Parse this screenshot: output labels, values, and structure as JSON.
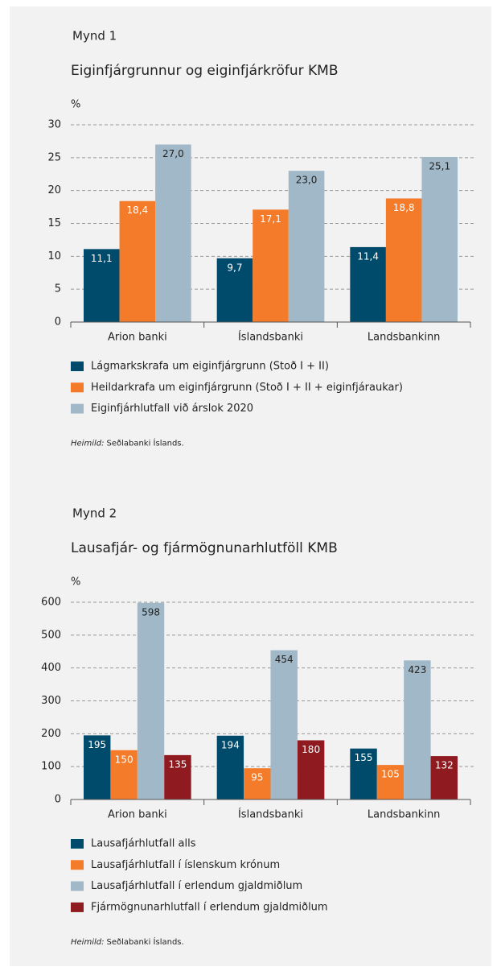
{
  "chart_data": [
    {
      "type": "bar",
      "figure": "Mynd 1",
      "title": "Eiginfjárgrunnur og eiginfjárkröfur KMB",
      "y_unit": "%",
      "categories": [
        "Arion banki",
        "Íslandsbanki",
        "Landsbankinn"
      ],
      "series": [
        {
          "name": "Lágmarkskrafa um eiginfjárgrunn (Stoð I +  II)",
          "color": "#004b6b",
          "values": [
            11.1,
            9.7,
            11.4
          ],
          "value_labels": [
            "11,1",
            "9,7",
            "11,4"
          ]
        },
        {
          "name": "Heildarkrafa um eiginfjárgrunn (Stoð I + II + eiginfjáraukar)",
          "color": "#f47b2a",
          "values": [
            18.4,
            17.1,
            18.8
          ],
          "value_labels": [
            "18,4",
            "17,1",
            "18,8"
          ]
        },
        {
          "name": "Eiginfjárhlutfall við árslok 2020",
          "color": "#a0b8c7",
          "values": [
            27.0,
            23.0,
            25.1
          ],
          "value_labels": [
            "27,0",
            "23,0",
            "25,1"
          ]
        }
      ],
      "ylim": [
        0,
        30
      ],
      "yticks": [
        0,
        5,
        10,
        15,
        20,
        25,
        30
      ],
      "grid": true,
      "source_label": "Heimild:",
      "source": "Seðlabanki Íslands."
    },
    {
      "type": "bar",
      "figure": "Mynd 2",
      "title": "Lausafjár- og fjármögnunarhlutföll KMB",
      "y_unit": "%",
      "categories": [
        "Arion banki",
        "Íslandsbanki",
        "Landsbankinn"
      ],
      "series": [
        {
          "name": "Lausafjárhlutfall alls",
          "color": "#004b6b",
          "values": [
            195,
            194,
            155
          ]
        },
        {
          "name": "Lausafjárhlutfall í íslenskum krónum",
          "color": "#f47b2a",
          "values": [
            150,
            95,
            105
          ]
        },
        {
          "name": "Lausafjárhlutfall í erlendum gjaldmiðlum",
          "color": "#a0b8c7",
          "values": [
            598,
            454,
            423
          ]
        },
        {
          "name": "Fjármögnunarhlutfall í erlendum gjaldmiðlum",
          "color": "#8f1a1f",
          "values": [
            135,
            180,
            132
          ]
        }
      ],
      "ylim": [
        0,
        600
      ],
      "yticks": [
        0,
        100,
        200,
        300,
        400,
        500,
        600
      ],
      "grid": true,
      "source_label": "Heimild:",
      "source": "Seðlabanki Íslands."
    }
  ]
}
